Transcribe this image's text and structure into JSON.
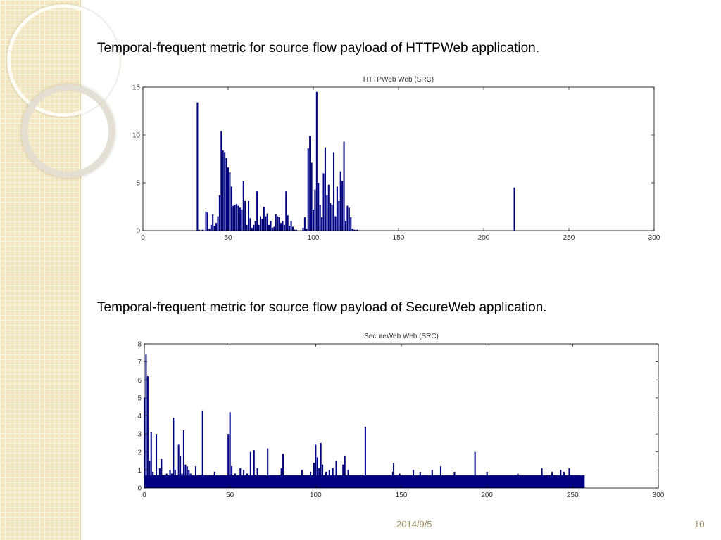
{
  "slide": {
    "caption1": "Temporal-frequent metric for source flow payload of HTTPWeb application.",
    "caption2": "Temporal-frequent metric for source flow payload of SecureWeb application.",
    "date": "2014/9/5",
    "page_number": "10",
    "colors": {
      "bar": "#000080",
      "panel": "#f1e6bf",
      "footer_text": "#9c8a5a"
    }
  },
  "chart_data": [
    {
      "type": "bar",
      "title": "HTTPWeb Web    (SRC)",
      "xlim": [
        0,
        300
      ],
      "ylim": [
        0,
        15
      ],
      "xticks": [
        0,
        50,
        100,
        150,
        200,
        250,
        300
      ],
      "yticks": [
        0,
        5,
        10,
        15
      ],
      "grid": false,
      "points": [
        [
          32,
          13.4
        ],
        [
          33,
          0.1
        ],
        [
          35,
          0.1
        ],
        [
          37,
          2.0
        ],
        [
          38,
          1.9
        ],
        [
          39,
          0.2
        ],
        [
          40,
          0.6
        ],
        [
          41,
          1.7
        ],
        [
          42,
          0.5
        ],
        [
          43,
          0.8
        ],
        [
          44,
          1.5
        ],
        [
          45,
          3.7
        ],
        [
          46,
          10.4
        ],
        [
          47,
          8.4
        ],
        [
          48,
          8.2
        ],
        [
          49,
          7.6
        ],
        [
          50,
          6.6
        ],
        [
          51,
          6.1
        ],
        [
          52,
          4.6
        ],
        [
          53,
          2.6
        ],
        [
          54,
          2.7
        ],
        [
          55,
          2.8
        ],
        [
          56,
          2.6
        ],
        [
          57,
          2.4
        ],
        [
          58,
          2.2
        ],
        [
          59,
          5.2
        ],
        [
          60,
          3.1
        ],
        [
          61,
          0.6
        ],
        [
          62,
          3.1
        ],
        [
          63,
          1.3
        ],
        [
          64,
          0.3
        ],
        [
          65,
          0.6
        ],
        [
          66,
          1.0
        ],
        [
          67,
          4.1
        ],
        [
          68,
          0.6
        ],
        [
          69,
          1.5
        ],
        [
          70,
          1.2
        ],
        [
          71,
          2.5
        ],
        [
          72,
          1.5
        ],
        [
          73,
          1.8
        ],
        [
          74,
          0.6
        ],
        [
          75,
          1.0
        ],
        [
          76,
          0.3
        ],
        [
          77,
          0.4
        ],
        [
          78,
          1.7
        ],
        [
          79,
          1.5
        ],
        [
          80,
          1.4
        ],
        [
          81,
          0.8
        ],
        [
          82,
          1.0
        ],
        [
          83,
          0.6
        ],
        [
          84,
          4.1
        ],
        [
          85,
          1.6
        ],
        [
          86,
          0.5
        ],
        [
          87,
          1.0
        ],
        [
          88,
          0.4
        ],
        [
          89,
          0.1
        ],
        [
          90,
          0.1
        ],
        [
          94,
          0.3
        ],
        [
          95,
          1.4
        ],
        [
          96,
          0.2
        ],
        [
          97,
          8.6
        ],
        [
          98,
          9.9
        ],
        [
          99,
          7.1
        ],
        [
          100,
          2.2
        ],
        [
          101,
          4.3
        ],
        [
          102,
          14.5
        ],
        [
          103,
          5.0
        ],
        [
          104,
          2.7
        ],
        [
          105,
          1.4
        ],
        [
          106,
          6.0
        ],
        [
          107,
          8.7
        ],
        [
          108,
          3.7
        ],
        [
          109,
          4.8
        ],
        [
          110,
          2.9
        ],
        [
          111,
          2.7
        ],
        [
          112,
          8.2
        ],
        [
          113,
          1.5
        ],
        [
          114,
          4.6
        ],
        [
          115,
          3.1
        ],
        [
          116,
          6.2
        ],
        [
          117,
          5.2
        ],
        [
          118,
          9.3
        ],
        [
          119,
          1.0
        ],
        [
          120,
          2.6
        ],
        [
          121,
          2.4
        ],
        [
          122,
          1.4
        ],
        [
          123,
          0.2
        ],
        [
          124,
          0.1
        ],
        [
          125,
          0.1
        ],
        [
          126,
          0.1
        ],
        [
          218,
          4.5
        ]
      ]
    },
    {
      "type": "bar",
      "title": "SecureWeb Web    (SRC)",
      "xlim": [
        0,
        300
      ],
      "ylim": [
        0,
        8
      ],
      "xticks": [
        0,
        50,
        100,
        150,
        200,
        250,
        300
      ],
      "yticks": [
        0,
        1,
        2,
        3,
        4,
        5,
        6,
        7,
        8
      ],
      "grid": false,
      "points": [
        [
          0,
          5.0
        ],
        [
          1,
          7.4
        ],
        [
          2,
          6.2
        ],
        [
          3,
          1.5
        ],
        [
          4,
          3.1
        ],
        [
          5,
          0.9
        ],
        [
          6,
          0.7
        ],
        [
          7,
          3.0
        ],
        [
          8,
          0.6
        ],
        [
          9,
          1.1
        ],
        [
          10,
          1.6
        ],
        [
          11,
          0.7
        ],
        [
          12,
          0.6
        ],
        [
          13,
          0.8
        ],
        [
          14,
          0.6
        ],
        [
          15,
          1.0
        ],
        [
          16,
          0.8
        ],
        [
          17,
          3.9
        ],
        [
          18,
          1.0
        ],
        [
          19,
          0.7
        ],
        [
          20,
          2.4
        ],
        [
          21,
          1.8
        ],
        [
          22,
          0.8
        ],
        [
          23,
          3.2
        ],
        [
          24,
          1.3
        ],
        [
          25,
          1.2
        ],
        [
          26,
          1.0
        ],
        [
          27,
          0.8
        ],
        [
          30,
          1.2
        ],
        [
          34,
          4.3
        ],
        [
          41,
          0.9
        ],
        [
          49,
          3.0
        ],
        [
          50,
          4.2
        ],
        [
          51,
          1.2
        ],
        [
          53,
          0.8
        ],
        [
          56,
          1.1
        ],
        [
          58,
          1.0
        ],
        [
          60,
          0.8
        ],
        [
          62,
          2.0
        ],
        [
          64,
          2.1
        ],
        [
          66,
          1.1
        ],
        [
          72,
          2.2
        ],
        [
          80,
          1.1
        ],
        [
          81,
          1.9
        ],
        [
          92,
          1.0
        ],
        [
          97,
          0.9
        ],
        [
          99,
          1.4
        ],
        [
          100,
          2.4
        ],
        [
          101,
          1.7
        ],
        [
          102,
          1.1
        ],
        [
          103,
          2.5
        ],
        [
          104,
          1.3
        ],
        [
          106,
          0.9
        ],
        [
          108,
          1.0
        ],
        [
          110,
          1.1
        ],
        [
          112,
          1.5
        ],
        [
          116,
          1.3
        ],
        [
          117,
          1.8
        ],
        [
          119,
          1.0
        ],
        [
          129,
          3.4
        ],
        [
          145,
          0.9
        ],
        [
          145.5,
          1.4
        ],
        [
          149,
          0.8
        ],
        [
          157,
          1.0
        ],
        [
          161,
          0.9
        ],
        [
          168,
          1.0
        ],
        [
          173,
          1.2
        ],
        [
          181,
          0.9
        ],
        [
          193,
          2.0
        ],
        [
          200,
          0.9
        ],
        [
          218,
          0.8
        ],
        [
          232,
          1.1
        ],
        [
          238,
          0.9
        ],
        [
          243,
          1.0
        ],
        [
          245,
          0.9
        ],
        [
          248,
          1.1
        ]
      ],
      "baseline": {
        "x_range": [
          0,
          257
        ],
        "value": 0.7
      }
    }
  ]
}
